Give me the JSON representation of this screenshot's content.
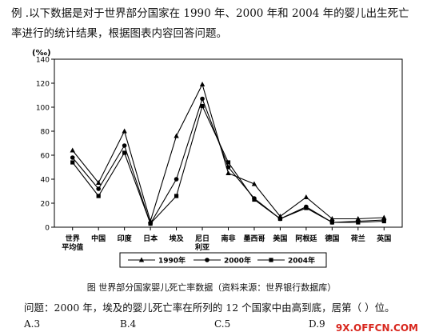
{
  "intro": "例 .以下数据是对于世界部分国家在 1990 年、2000 年和 2004 年的婴儿出生死亡率进行的统计结果，根据图表内容回答问题。",
  "caption": "图  世界部分国家婴儿死亡率数据（资料来源：世界银行数据库）",
  "question": "问题：2000 年，埃及的婴儿死亡率在所列的 12 个国家中由高到底，居第（     ）位。",
  "options": [
    "A.3",
    "B.4",
    "C.5",
    "D.9"
  ],
  "watermark": "9X.OFFCN.COM",
  "chart_data": {
    "type": "line",
    "ylabel": "(‰)",
    "ylim": [
      0,
      140
    ],
    "yticks": [
      0,
      20,
      40,
      60,
      80,
      100,
      120,
      140
    ],
    "categories": [
      "世界平均值",
      "中国",
      "印度",
      "日本",
      "埃及",
      "尼日利亚",
      "南非",
      "墨西哥",
      "美国",
      "阿根廷",
      "德国",
      "荷兰",
      "英国"
    ],
    "category_lines": [
      [
        "世界",
        "平均值"
      ],
      [
        "中国"
      ],
      [
        "印度"
      ],
      [
        "日本"
      ],
      [
        "埃及"
      ],
      [
        "尼日",
        "利亚"
      ],
      [
        "南非"
      ],
      [
        "墨西哥"
      ],
      [
        "美国"
      ],
      [
        "阿根廷"
      ],
      [
        "德国"
      ],
      [
        "荷兰"
      ],
      [
        "英国"
      ]
    ],
    "series": [
      {
        "name": "1990年",
        "marker": "triangle",
        "values": [
          64,
          37,
          80,
          5,
          76,
          119,
          45,
          36,
          9,
          25,
          7,
          7,
          8
        ]
      },
      {
        "name": "2000年",
        "marker": "circle",
        "values": [
          58,
          32,
          68,
          3,
          40,
          107,
          50,
          24,
          7,
          17,
          4,
          5,
          6
        ]
      },
      {
        "name": "2004年",
        "marker": "square",
        "values": [
          54,
          26,
          62,
          3,
          26,
          101,
          54,
          23,
          7,
          16,
          4,
          4,
          5
        ]
      }
    ]
  }
}
